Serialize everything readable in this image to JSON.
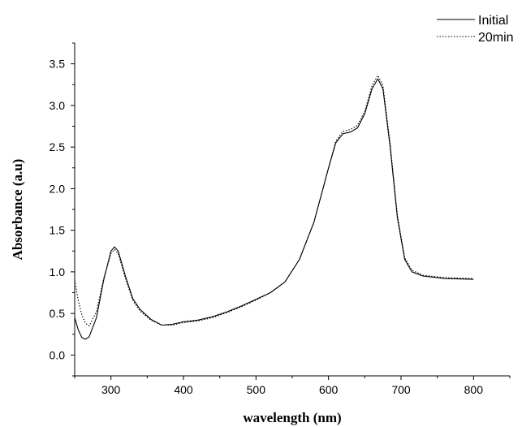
{
  "chart_data": {
    "type": "line",
    "xlabel": "wavelength (nm)",
    "ylabel": "Absorbance (a.u)",
    "xlim": [
      250,
      850
    ],
    "ylim": [
      -0.25,
      3.75
    ],
    "x_ticks": [
      300,
      400,
      500,
      600,
      700,
      800
    ],
    "x_tick_labels": [
      "300",
      "400",
      "500",
      "600",
      "700",
      "800"
    ],
    "y_ticks": [
      0.0,
      0.5,
      1.0,
      1.5,
      2.0,
      2.5,
      3.0,
      3.5
    ],
    "y_tick_labels": [
      "0.0",
      "0.5",
      "1.0",
      "1.5",
      "2.0",
      "2.5",
      "3.0",
      "3.5"
    ],
    "grid": false,
    "legend_position": "top-right",
    "series": [
      {
        "name": "Initial",
        "style": "solid",
        "color": "#000000",
        "points": [
          [
            250,
            0.45
          ],
          [
            255,
            0.3
          ],
          [
            260,
            0.21
          ],
          [
            265,
            0.19
          ],
          [
            270,
            0.22
          ],
          [
            280,
            0.45
          ],
          [
            290,
            0.9
          ],
          [
            300,
            1.25
          ],
          [
            305,
            1.3
          ],
          [
            310,
            1.25
          ],
          [
            320,
            0.95
          ],
          [
            330,
            0.68
          ],
          [
            340,
            0.55
          ],
          [
            355,
            0.43
          ],
          [
            370,
            0.36
          ],
          [
            385,
            0.37
          ],
          [
            400,
            0.4
          ],
          [
            420,
            0.42
          ],
          [
            440,
            0.46
          ],
          [
            460,
            0.52
          ],
          [
            480,
            0.59
          ],
          [
            500,
            0.67
          ],
          [
            520,
            0.75
          ],
          [
            540,
            0.88
          ],
          [
            560,
            1.15
          ],
          [
            580,
            1.6
          ],
          [
            600,
            2.25
          ],
          [
            610,
            2.55
          ],
          [
            620,
            2.66
          ],
          [
            630,
            2.68
          ],
          [
            640,
            2.73
          ],
          [
            650,
            2.9
          ],
          [
            660,
            3.2
          ],
          [
            668,
            3.32
          ],
          [
            675,
            3.2
          ],
          [
            685,
            2.5
          ],
          [
            695,
            1.65
          ],
          [
            705,
            1.15
          ],
          [
            715,
            1.0
          ],
          [
            730,
            0.95
          ],
          [
            760,
            0.92
          ],
          [
            800,
            0.91
          ]
        ]
      },
      {
        "name": "20min",
        "style": "dotted",
        "color": "#000000",
        "points": [
          [
            250,
            0.9
          ],
          [
            255,
            0.65
          ],
          [
            260,
            0.48
          ],
          [
            265,
            0.38
          ],
          [
            270,
            0.35
          ],
          [
            280,
            0.52
          ],
          [
            290,
            0.92
          ],
          [
            300,
            1.22
          ],
          [
            305,
            1.27
          ],
          [
            310,
            1.22
          ],
          [
            320,
            0.92
          ],
          [
            330,
            0.66
          ],
          [
            340,
            0.53
          ],
          [
            355,
            0.42
          ],
          [
            370,
            0.36
          ],
          [
            385,
            0.36
          ],
          [
            400,
            0.39
          ],
          [
            420,
            0.41
          ],
          [
            440,
            0.45
          ],
          [
            460,
            0.51
          ],
          [
            480,
            0.58
          ],
          [
            500,
            0.66
          ],
          [
            520,
            0.75
          ],
          [
            540,
            0.88
          ],
          [
            560,
            1.15
          ],
          [
            580,
            1.6
          ],
          [
            600,
            2.25
          ],
          [
            610,
            2.57
          ],
          [
            620,
            2.69
          ],
          [
            630,
            2.71
          ],
          [
            640,
            2.76
          ],
          [
            650,
            2.93
          ],
          [
            660,
            3.24
          ],
          [
            668,
            3.36
          ],
          [
            675,
            3.24
          ],
          [
            685,
            2.54
          ],
          [
            695,
            1.68
          ],
          [
            705,
            1.17
          ],
          [
            715,
            1.02
          ],
          [
            730,
            0.96
          ],
          [
            760,
            0.93
          ],
          [
            800,
            0.92
          ]
        ]
      }
    ]
  }
}
